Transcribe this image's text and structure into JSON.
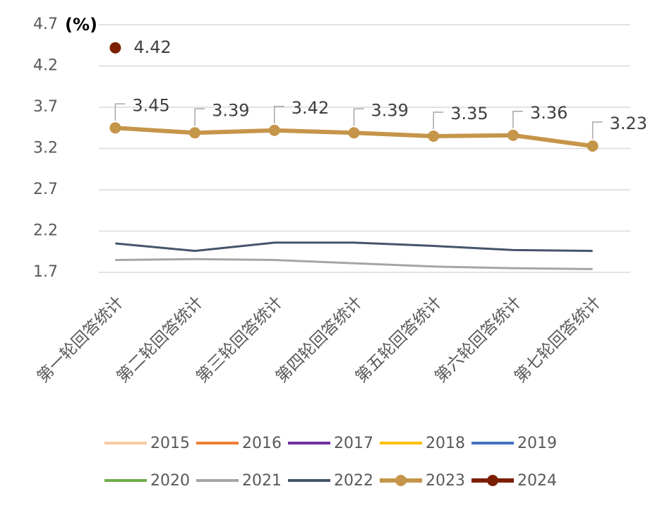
{
  "chart_data": {
    "type": "line",
    "y_label": "(%)",
    "categories": [
      "第一轮回答统计",
      "第二轮回答统计",
      "第三轮回答统计",
      "第四轮回答统计",
      "第五轮回答统计",
      "第六轮回答统计",
      "第七轮回答统计"
    ],
    "series": [
      {
        "name": "2015",
        "color": "#f8cba0",
        "values": [
          null,
          null,
          null,
          null,
          null,
          null,
          null
        ]
      },
      {
        "name": "2016",
        "color": "#ed7d31",
        "values": [
          null,
          null,
          null,
          null,
          null,
          null,
          null
        ]
      },
      {
        "name": "2017",
        "color": "#7030a0",
        "values": [
          null,
          null,
          null,
          null,
          null,
          null,
          null
        ]
      },
      {
        "name": "2018",
        "color": "#ffc000",
        "values": [
          null,
          null,
          null,
          null,
          null,
          null,
          null
        ]
      },
      {
        "name": "2019",
        "color": "#4472c4",
        "values": [
          null,
          null,
          null,
          null,
          null,
          null,
          null
        ]
      },
      {
        "name": "2020",
        "color": "#70ad47",
        "values": [
          null,
          null,
          null,
          null,
          null,
          null,
          null
        ]
      },
      {
        "name": "2021",
        "color": "#a5a5a5",
        "values": [
          1.85,
          1.86,
          1.85,
          1.81,
          1.77,
          1.75,
          1.74
        ]
      },
      {
        "name": "2022",
        "color": "#44546a",
        "values": [
          2.05,
          1.96,
          2.06,
          2.06,
          2.02,
          1.97,
          1.96
        ]
      },
      {
        "name": "2023",
        "color": "#c5954a",
        "markers": true,
        "data_labels": true,
        "values": [
          3.45,
          3.39,
          3.42,
          3.39,
          3.35,
          3.36,
          3.23
        ]
      },
      {
        "name": "2024",
        "color": "#7b1f00",
        "markers": true,
        "data_labels": true,
        "values": [
          4.42,
          null,
          null,
          null,
          null,
          null,
          null
        ]
      }
    ],
    "ylim": [
      1.7,
      4.7
    ],
    "yticks": [
      1.7,
      2.2,
      2.7,
      3.2,
      3.7,
      4.2,
      4.7
    ],
    "grid": true,
    "legend": "bottom"
  }
}
